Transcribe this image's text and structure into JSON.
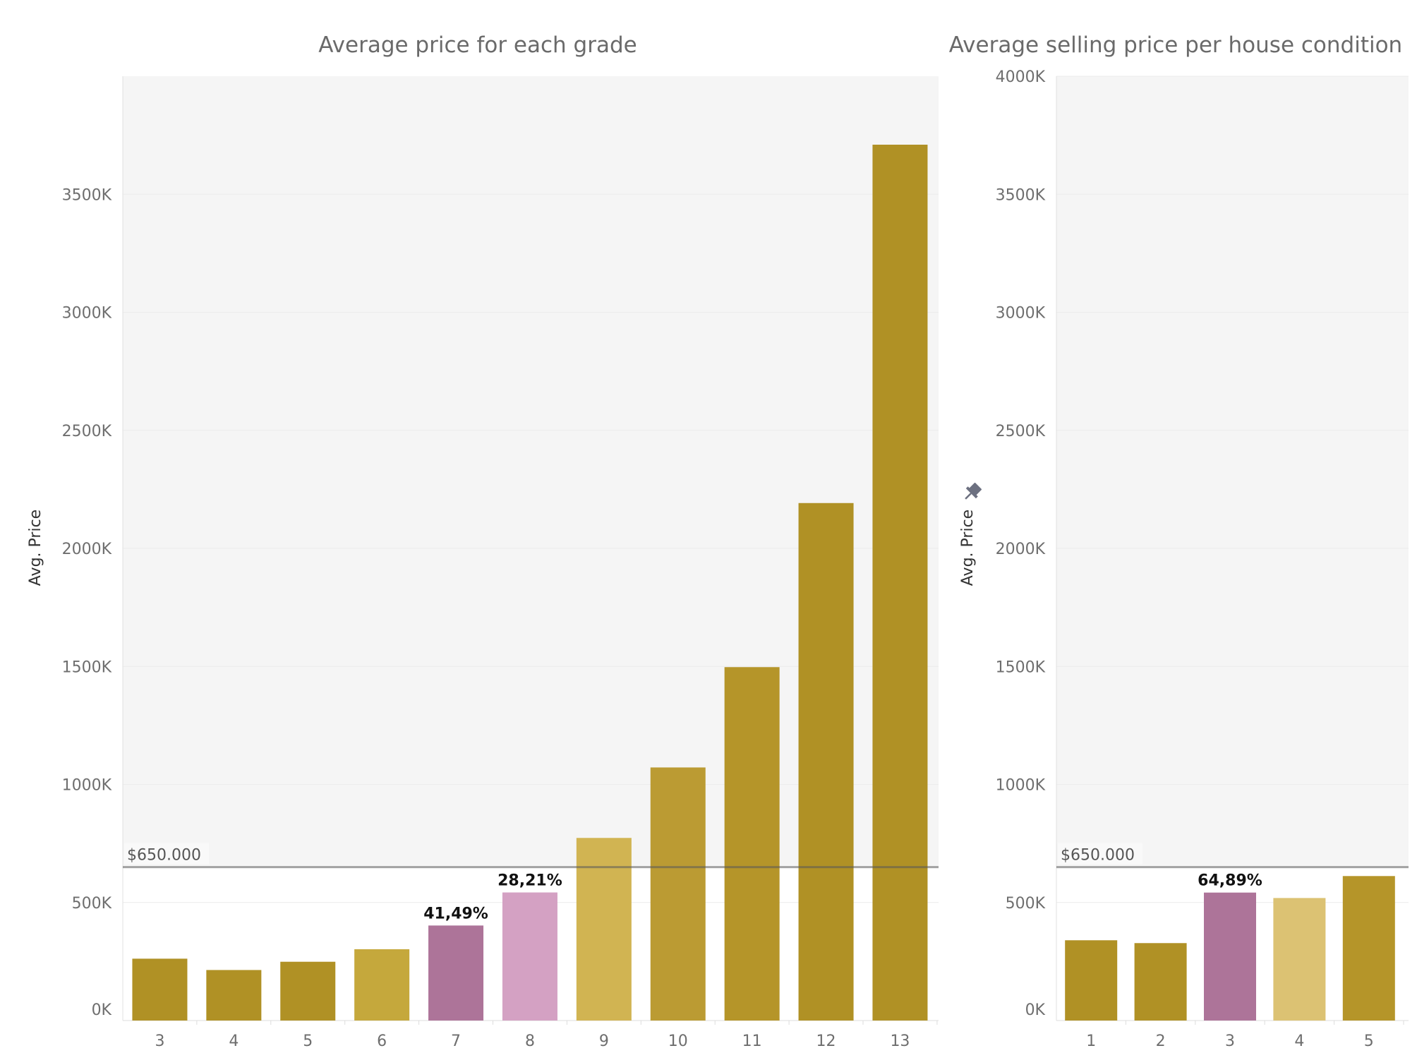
{
  "chart_data": [
    {
      "type": "bar",
      "title": "Average price for each grade",
      "xlabel": "",
      "ylabel": "Avg. Price",
      "ylim": [
        0,
        4000000
      ],
      "yticks": [
        0,
        500000,
        1000000,
        1500000,
        2000000,
        2500000,
        3000000,
        3500000
      ],
      "ytick_labels": [
        "0K",
        "500K",
        "1000K",
        "1500K",
        "2000K",
        "2500K",
        "3000K",
        "3500K"
      ],
      "categories": [
        "3",
        "4",
        "5",
        "6",
        "7",
        "8",
        "9",
        "10",
        "11",
        "12",
        "13"
      ],
      "values": [
        262000,
        214000,
        249000,
        302000,
        402500,
        542500,
        773500,
        1072000,
        1497000,
        2192000,
        3710000
      ],
      "colors": [
        "#b09125",
        "#b09125",
        "#b09125",
        "#c5a83c",
        "#ad7499",
        "#d4a1c3",
        "#d1b452",
        "#bb9b33",
        "#b59529",
        "#b09125",
        "#b09125"
      ],
      "data_labels": [
        "",
        "",
        "",
        "",
        "41,49%",
        "28,21%",
        "",
        "",
        "",
        "",
        ""
      ],
      "reference_line": {
        "value": 650000,
        "label": "$650.000"
      },
      "grid": true
    },
    {
      "type": "bar",
      "title": "Average selling price per house condition",
      "xlabel": "",
      "ylabel": "Avg. Price",
      "ylim": [
        0,
        4000000
      ],
      "yticks": [
        0,
        500000,
        1000000,
        1500000,
        2000000,
        2500000,
        3000000,
        3500000,
        4000000
      ],
      "ytick_labels": [
        "0K",
        "500K",
        "1000K",
        "1500K",
        "2000K",
        "2500K",
        "3000K",
        "3500K",
        "4000K"
      ],
      "categories": [
        "1",
        "2",
        "3",
        "4",
        "5"
      ],
      "values": [
        340000,
        328000,
        542000,
        519000,
        612000
      ],
      "colors": [
        "#b09125",
        "#b09125",
        "#ad7499",
        "#dcc273",
        "#b59529"
      ],
      "data_labels": [
        "",
        "",
        "64,89%",
        "",
        ""
      ],
      "reference_line": {
        "value": 650000,
        "label": "$650.000"
      },
      "grid": true,
      "pin_icon": "pin-icon"
    }
  ]
}
